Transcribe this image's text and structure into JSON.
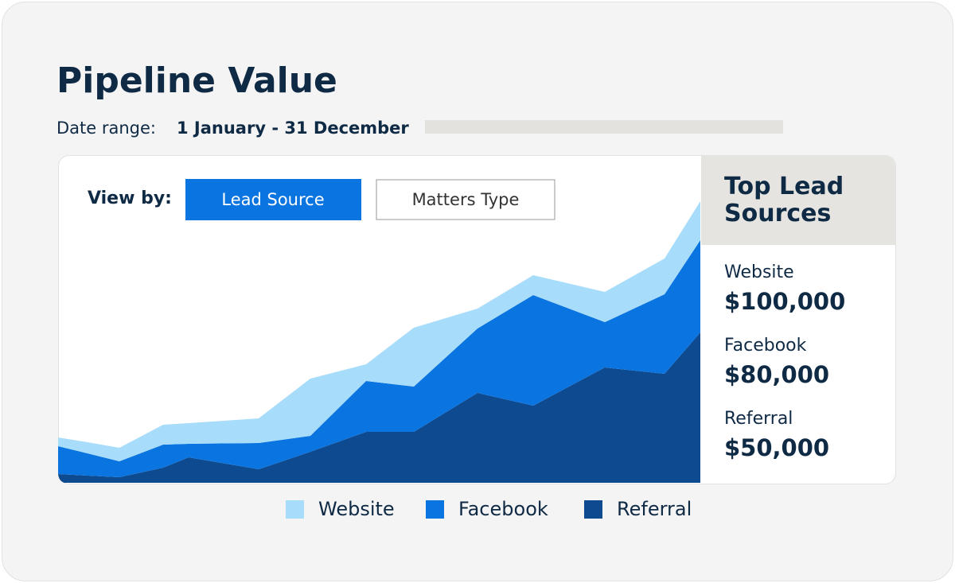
{
  "header": {
    "title": "Pipeline Value",
    "date_label": "Date range:",
    "date_value": "1 January - 31 December"
  },
  "view_by": {
    "label": "View by:",
    "options": [
      "Lead Source",
      "Matters Type"
    ]
  },
  "chart_data": {
    "type": "area",
    "stacked": true,
    "x": [
      0,
      37,
      77,
      132,
      164,
      252,
      317,
      387,
      447,
      527,
      597,
      687,
      762,
      807
    ],
    "xlim": [
      0,
      807
    ],
    "ylim": [
      0,
      412
    ],
    "series": [
      {
        "name": "Website",
        "color": "#a8dcfb",
        "values": [
          11,
          14,
          17,
          25,
          26,
          31,
          72,
          21,
          74,
          25,
          25,
          38,
          45,
          49
        ]
      },
      {
        "name": "Facebook",
        "color": "#0a74e0",
        "values": [
          35,
          28,
          20,
          29,
          17,
          33,
          20,
          64,
          57,
          81,
          139,
          57,
          100,
          116
        ]
      },
      {
        "name": "Referral",
        "color": "#0d4a8f",
        "values": [
          11,
          9,
          7,
          19,
          32,
          17,
          39,
          64,
          64,
          113,
          97,
          145,
          137,
          189
        ]
      }
    ]
  },
  "top_sources": {
    "title": "Top Lead Sources",
    "items": [
      {
        "name": "Website",
        "value": "$100,000"
      },
      {
        "name": "Facebook",
        "value": "$80,000"
      },
      {
        "name": "Referral",
        "value": "$50,000"
      }
    ]
  }
}
